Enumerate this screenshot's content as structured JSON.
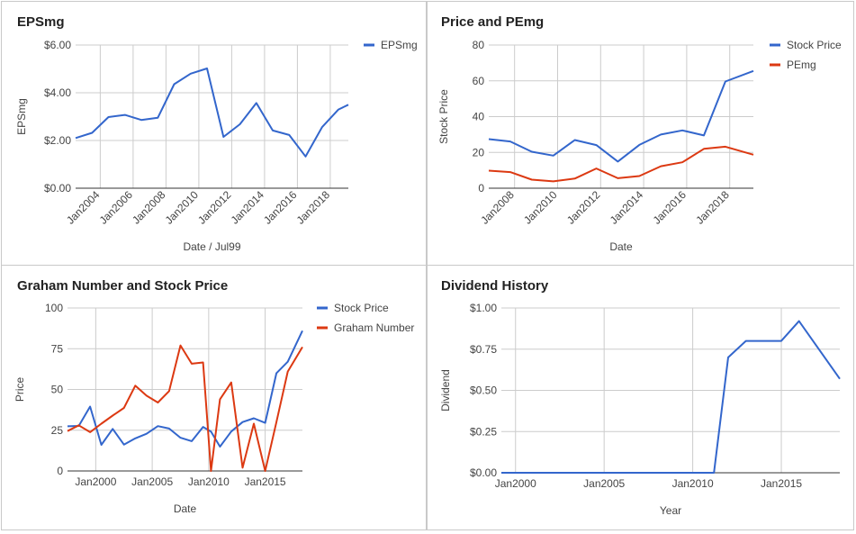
{
  "colors": {
    "blue": "#3366cc",
    "red": "#dc3912",
    "grid": "#cccccc",
    "axis": "#333333",
    "tick_text": "#444444"
  },
  "chart_data": [
    {
      "id": "eps",
      "type": "line",
      "title": "EPSmg",
      "xlabel": "Date / Jul99",
      "ylabel": "EPSmg",
      "ylim": [
        0,
        6
      ],
      "xlim": [
        2002.5,
        2019.1
      ],
      "y_ticks": [
        0,
        2,
        4,
        6
      ],
      "y_tick_labels": [
        "$0.00",
        "$2.00",
        "$4.00",
        "$6.00"
      ],
      "x_ticks": [
        2004,
        2006,
        2008,
        2010,
        2012,
        2014,
        2016,
        2018
      ],
      "x_tick_labels": [
        "Jan2004",
        "Jan2006",
        "Jan2008",
        "Jan2010",
        "Jan2012",
        "Jan2014",
        "Jan2016",
        "Jan2018"
      ],
      "x_tick_rotated": true,
      "grid": true,
      "legend_position": "top-right",
      "series": [
        {
          "name": "EPSmg",
          "color": "#3366cc",
          "x": [
            2002.5,
            2003.5,
            2004.5,
            2005.5,
            2006.5,
            2007.5,
            2008.5,
            2009.5,
            2010.5,
            2011.5,
            2012.5,
            2013.5,
            2014.5,
            2015.5,
            2016.5,
            2017.5,
            2018.5,
            2019.1
          ],
          "y": [
            2.1,
            2.32,
            2.98,
            3.07,
            2.86,
            2.95,
            4.36,
            4.8,
            5.02,
            2.15,
            2.68,
            3.57,
            2.42,
            2.23,
            1.33,
            2.56,
            3.3,
            3.5
          ]
        }
      ]
    },
    {
      "id": "pe",
      "type": "line",
      "title": "Price and PEmg",
      "xlabel": "Date",
      "ylabel": "Stock Price",
      "ylim": [
        0,
        80
      ],
      "xlim": [
        2006.8,
        2019.1
      ],
      "y_ticks": [
        0,
        20,
        40,
        60,
        80
      ],
      "y_tick_labels": [
        "0",
        "20",
        "40",
        "60",
        "80"
      ],
      "x_ticks": [
        2008,
        2010,
        2012,
        2014,
        2016,
        2018
      ],
      "x_tick_labels": [
        "Jan2008",
        "Jan2010",
        "Jan2012",
        "Jan2014",
        "Jan2016",
        "Jan2018"
      ],
      "x_tick_rotated": true,
      "grid": true,
      "legend_position": "top-right",
      "series": [
        {
          "name": "Stock Price",
          "color": "#3366cc",
          "x": [
            2006.8,
            2007.8,
            2008.8,
            2009.8,
            2010.8,
            2011.8,
            2012.8,
            2013.8,
            2014.8,
            2015.8,
            2016.8,
            2017.8,
            2019.1
          ],
          "y": [
            27.4,
            26.1,
            20.4,
            18.2,
            26.9,
            24.1,
            14.9,
            24.2,
            30.0,
            32.3,
            29.5,
            59.6,
            65.5
          ]
        },
        {
          "name": "PEmg",
          "color": "#dc3912",
          "x": [
            2006.8,
            2007.8,
            2008.8,
            2009.8,
            2010.8,
            2011.8,
            2012.8,
            2013.8,
            2014.8,
            2015.8,
            2016.8,
            2017.8,
            2019.1
          ],
          "y": [
            9.8,
            9.0,
            4.8,
            3.8,
            5.4,
            11.0,
            5.6,
            6.8,
            12.3,
            14.5,
            22.0,
            23.2,
            18.7
          ]
        }
      ]
    },
    {
      "id": "graham",
      "type": "line",
      "title": "Graham Number and Stock Price",
      "xlabel": "Date",
      "ylabel": "Price",
      "ylim": [
        0,
        100
      ],
      "xlim": [
        1997.5,
        2018.3
      ],
      "y_ticks": [
        0,
        25,
        50,
        75,
        100
      ],
      "y_tick_labels": [
        "0",
        "25",
        "50",
        "75",
        "100"
      ],
      "x_ticks": [
        2000,
        2005,
        2010,
        2015
      ],
      "x_tick_labels": [
        "Jan2000",
        "Jan2005",
        "Jan2010",
        "Jan2015"
      ],
      "x_tick_rotated": false,
      "grid": true,
      "legend_position": "top-right",
      "series": [
        {
          "name": "Stock Price",
          "color": "#3366cc",
          "x": [
            1997.5,
            1998.5,
            1999.5,
            2000.5,
            2001.5,
            2002.5,
            2003.5,
            2004.5,
            2005.5,
            2006.5,
            2007.5,
            2008.5,
            2009.5,
            2010.2,
            2011.0,
            2012.0,
            2013.0,
            2014.0,
            2015.0,
            2016.0,
            2017.0,
            2018.3
          ],
          "y": [
            27.4,
            27.6,
            39.5,
            16.0,
            25.8,
            16.2,
            20.0,
            22.8,
            27.5,
            26.0,
            20.4,
            18.3,
            27.0,
            24.2,
            14.9,
            24.2,
            30.0,
            32.3,
            29.5,
            60.0,
            67.0,
            86.0
          ]
        },
        {
          "name": "Graham Number",
          "color": "#dc3912",
          "x": [
            1997.5,
            1998.5,
            1999.5,
            2000.5,
            2001.5,
            2002.5,
            2003.5,
            2004.5,
            2005.5,
            2006.5,
            2007.5,
            2008.5,
            2009.5,
            2010.2,
            2011.0,
            2012.0,
            2013.0,
            2014.0,
            2015.0,
            2016.0,
            2017.0,
            2018.3
          ],
          "y": [
            24.5,
            28.0,
            23.8,
            29.0,
            34.0,
            38.7,
            52.3,
            46.2,
            42.0,
            49.0,
            77.0,
            65.8,
            66.6,
            0.0,
            44.0,
            54.3,
            2.0,
            29.0,
            0.0,
            30.0,
            61.0,
            76.0
          ]
        }
      ]
    },
    {
      "id": "dividend",
      "type": "line",
      "title": "Dividend History",
      "xlabel": "Year",
      "ylabel": "Dividend",
      "ylim": [
        0,
        1
      ],
      "xlim": [
        1999.2,
        2018.3
      ],
      "y_ticks": [
        0,
        0.25,
        0.5,
        0.75,
        1.0
      ],
      "y_tick_labels": [
        "$0.00",
        "$0.25",
        "$0.50",
        "$0.75",
        "$1.00"
      ],
      "x_ticks": [
        2000,
        2005,
        2010,
        2015
      ],
      "x_tick_labels": [
        "Jan2000",
        "Jan2005",
        "Jan2010",
        "Jan2015"
      ],
      "x_tick_rotated": false,
      "grid": true,
      "legend_position": "none",
      "series": [
        {
          "name": "",
          "color": "#3366cc",
          "x": [
            1999.2,
            2011.2,
            2012.0,
            2013.0,
            2014.0,
            2015.0,
            2016.0,
            2018.3
          ],
          "y": [
            0.0,
            0.0,
            0.7,
            0.8,
            0.8,
            0.8,
            0.92,
            0.57
          ]
        }
      ]
    }
  ]
}
